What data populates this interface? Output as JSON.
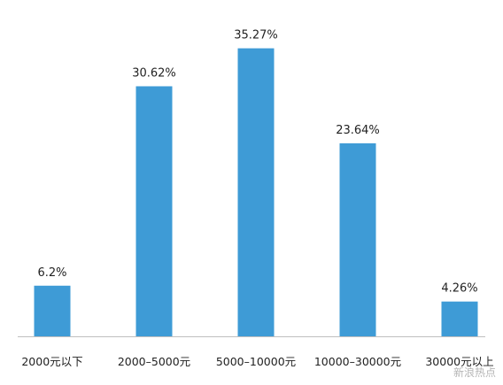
{
  "chart_data": {
    "type": "bar",
    "categories": [
      "2000元以下",
      "2000–5000元",
      "5000–10000元",
      "10000–30000元",
      "30000元以上"
    ],
    "values": [
      6.2,
      30.62,
      35.27,
      23.64,
      4.26
    ],
    "value_labels": [
      "6.2%",
      "30.62%",
      "35.27%",
      "23.64%",
      "4.26%"
    ],
    "ylim": [
      0,
      37.5
    ],
    "grid": false,
    "legend": "none",
    "bar_color": "#3e9bd6"
  },
  "watermark": "新浪热点"
}
